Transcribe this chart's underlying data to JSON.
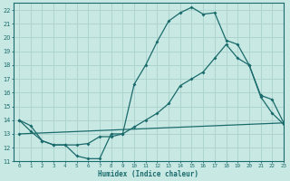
{
  "background_color": "#c8e8e4",
  "grid_color": "#aed4d0",
  "line_color": "#1a6b6b",
  "xlabel": "Humidex (Indice chaleur)",
  "xlim": [
    -0.5,
    23
  ],
  "ylim": [
    11,
    22.5
  ],
  "yticks": [
    11,
    12,
    13,
    14,
    15,
    16,
    17,
    18,
    19,
    20,
    21,
    22
  ],
  "xticks": [
    0,
    1,
    2,
    3,
    4,
    5,
    6,
    7,
    8,
    9,
    10,
    11,
    12,
    13,
    14,
    15,
    16,
    17,
    18,
    19,
    20,
    21,
    22,
    23
  ],
  "line1_x": [
    0,
    1,
    2,
    3,
    4,
    5,
    6,
    7,
    8,
    9,
    10,
    11,
    12,
    13,
    14,
    15,
    16,
    17,
    18,
    19,
    20,
    21,
    22,
    23
  ],
  "line1_y": [
    14.0,
    13.6,
    12.5,
    12.2,
    12.2,
    11.4,
    11.2,
    11.2,
    13.0,
    13.0,
    16.6,
    18.0,
    19.7,
    21.2,
    21.8,
    22.2,
    21.7,
    21.8,
    19.8,
    19.5,
    18.0,
    15.7,
    14.5,
    13.7
  ],
  "line2_x": [
    0,
    1,
    2,
    3,
    4,
    5,
    6,
    7,
    8,
    9,
    10,
    11,
    12,
    13,
    14,
    15,
    16,
    17,
    18,
    19,
    20,
    21,
    22,
    23
  ],
  "line2_y": [
    14.0,
    13.2,
    12.5,
    12.2,
    12.2,
    12.2,
    12.3,
    12.8,
    12.8,
    13.0,
    13.5,
    14.0,
    14.5,
    15.2,
    16.5,
    17.0,
    17.5,
    18.5,
    19.5,
    18.5,
    18.0,
    15.8,
    15.5,
    13.8
  ],
  "line3_x": [
    0,
    23
  ],
  "line3_y": [
    13.0,
    13.8
  ]
}
